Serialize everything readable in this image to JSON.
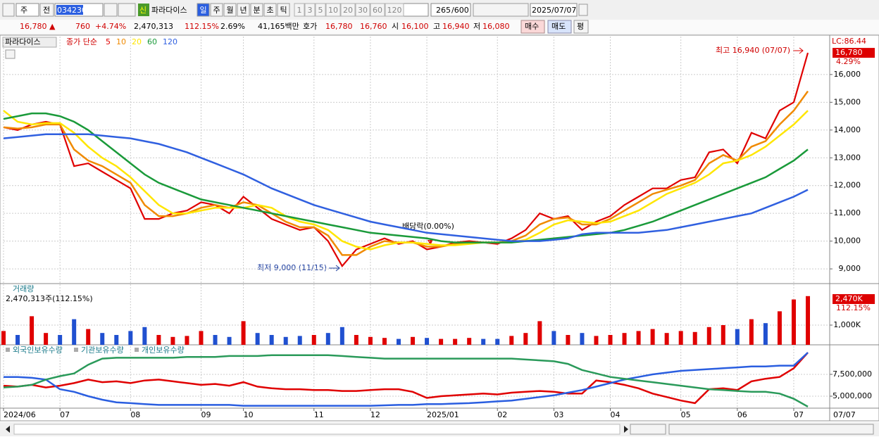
{
  "toolbar": {
    "period_mode": "주",
    "compare": "전",
    "code": "034230",
    "name_badge": "신",
    "name": "파라다이스",
    "periods": [
      "일",
      "주",
      "월",
      "년",
      "분",
      "초",
      "틱"
    ],
    "intervals": [
      "1",
      "3",
      "5",
      "10",
      "20",
      "30",
      "60",
      "120"
    ],
    "count": "265",
    "count_max": "/600",
    "date": "2025/07/07"
  },
  "quote": {
    "price": "16,780 ▲",
    "change": "760",
    "change_pct": "+4.74%",
    "volume": "2,470,313",
    "volume_ratio": "112.15%",
    "turnover": "2.69%",
    "amount": "41,165백만",
    "ask_label": "호가",
    "ask": "16,780",
    "bid": "16,760",
    "open_label": "시",
    "open": "16,100",
    "high_label": "고",
    "high": "16,940",
    "low_label": "저",
    "low": "16,080",
    "buy": "매수",
    "sell": "매도",
    "eval": "평"
  },
  "chart_data": [
    {
      "type": "line",
      "name": "파라다이스",
      "legend_title": "종가 단순",
      "categories": [
        "2024/06",
        null,
        null,
        null,
        "07",
        null,
        null,
        null,
        null,
        "08",
        null,
        null,
        null,
        null,
        "09",
        null,
        null,
        "10",
        null,
        null,
        null,
        null,
        "11",
        null,
        null,
        null,
        "12",
        null,
        null,
        null,
        "2025/01",
        null,
        null,
        null,
        null,
        "02",
        null,
        null,
        null,
        "03",
        null,
        null,
        null,
        "04",
        null,
        null,
        null,
        null,
        "05",
        null,
        null,
        null,
        "06",
        null,
        null,
        null,
        "07",
        null
      ],
      "x_last_label": "07/07",
      "series": [
        {
          "name": "5",
          "color": "#e00000",
          "values": [
            14100,
            14000,
            14200,
            14300,
            14200,
            12700,
            12800,
            12500,
            12200,
            11900,
            10800,
            10800,
            11000,
            11100,
            11400,
            11300,
            11000,
            11600,
            11200,
            10800,
            10600,
            10400,
            10500,
            10000,
            9100,
            9700,
            9900,
            10100,
            9900,
            10000,
            9700,
            9800,
            9950,
            10000,
            9950,
            9900,
            10100,
            10400,
            11000,
            10800,
            10900,
            10400,
            10700,
            10900,
            11300,
            11600,
            11900,
            11900,
            12200,
            12300,
            13200,
            13300,
            12800,
            13900,
            13700,
            14700,
            15000,
            16780
          ]
        },
        {
          "name": "10",
          "color": "#f08a00",
          "values": [
            14100,
            14050,
            14100,
            14200,
            14200,
            13300,
            12900,
            12700,
            12400,
            12100,
            11300,
            10900,
            10900,
            11000,
            11200,
            11300,
            11200,
            11400,
            11300,
            11000,
            10700,
            10500,
            10500,
            10200,
            9500,
            9500,
            9800,
            10000,
            9950,
            9950,
            9800,
            9800,
            9900,
            9950,
            9950,
            9950,
            10000,
            10200,
            10600,
            10800,
            10850,
            10600,
            10600,
            10800,
            11100,
            11400,
            11700,
            11850,
            12000,
            12200,
            12800,
            13100,
            12900,
            13400,
            13600,
            14200,
            14700,
            15400
          ]
        },
        {
          "name": "20",
          "color": "#ffe600",
          "values": [
            14700,
            14300,
            14200,
            14250,
            14250,
            13900,
            13400,
            13000,
            12700,
            12300,
            11800,
            11300,
            11000,
            11000,
            11100,
            11200,
            11200,
            11200,
            11300,
            11200,
            10900,
            10700,
            10600,
            10400,
            10000,
            9800,
            9700,
            9850,
            9950,
            9950,
            9900,
            9850,
            9850,
            9900,
            9950,
            9950,
            9950,
            10050,
            10300,
            10600,
            10750,
            10700,
            10650,
            10700,
            10900,
            11100,
            11400,
            11700,
            11900,
            12100,
            12400,
            12800,
            12900,
            13100,
            13400,
            13800,
            14200,
            14700
          ]
        },
        {
          "name": "60",
          "color": "#1a9a3a",
          "values": [
            14400,
            14500,
            14600,
            14600,
            14500,
            14300,
            14000,
            13600,
            13200,
            12800,
            12400,
            12100,
            11900,
            11700,
            11500,
            11400,
            11300,
            11200,
            11100,
            11000,
            10900,
            10800,
            10700,
            10600,
            10500,
            10400,
            10300,
            10250,
            10200,
            10150,
            10100,
            10000,
            9950,
            9950,
            9950,
            9950,
            9950,
            10000,
            10050,
            10100,
            10150,
            10200,
            10250,
            10300,
            10400,
            10550,
            10700,
            10900,
            11100,
            11300,
            11500,
            11700,
            11900,
            12100,
            12300,
            12600,
            12900,
            13300
          ]
        },
        {
          "name": "120",
          "color": "#3060e0",
          "values": [
            13700,
            13750,
            13800,
            13850,
            13850,
            13850,
            13850,
            13800,
            13750,
            13700,
            13600,
            13500,
            13350,
            13200,
            13000,
            12800,
            12600,
            12400,
            12150,
            11900,
            11700,
            11500,
            11300,
            11150,
            11000,
            10850,
            10700,
            10600,
            10500,
            10400,
            10300,
            10250,
            10200,
            10150,
            10100,
            10050,
            10000,
            10000,
            10000,
            10050,
            10100,
            10250,
            10300,
            10300,
            10300,
            10300,
            10350,
            10400,
            10500,
            10600,
            10700,
            10800,
            10900,
            11000,
            11200,
            11400,
            11600,
            11850
          ]
        }
      ],
      "ylim": [
        8470,
        16960
      ],
      "yticks": [
        {
          "value": 9000,
          "label": "9,000"
        },
        {
          "value": 10000,
          "label": "10,000"
        },
        {
          "value": 11000,
          "label": "11,000"
        },
        {
          "value": 12000,
          "label": "12,000"
        },
        {
          "value": 13000,
          "label": "13,000"
        },
        {
          "value": 14000,
          "label": "14,000"
        },
        {
          "value": 15000,
          "label": "15,000"
        },
        {
          "value": 16000,
          "label": "16,000"
        }
      ],
      "grid": true,
      "annotations": {
        "high": "최고 16,940 (07/07)",
        "low": "최저 9,000 (11/15)",
        "dividend": "배당락(0.00%)",
        "lc": "LC:86.44",
        "last_price": "16,780",
        "last_pct": "4.29%"
      }
    },
    {
      "type": "bar",
      "title": "거래량",
      "subtitle": "2,470,313주(112.15%)",
      "up_color": "#e00000",
      "down_color": "#2050d0",
      "values": [
        700000,
        500000,
        1450000,
        600000,
        500000,
        1300000,
        800000,
        600000,
        500000,
        700000,
        900000,
        500000,
        400000,
        450000,
        700000,
        500000,
        400000,
        1200000,
        600000,
        500000,
        400000,
        450000,
        500000,
        600000,
        900000,
        500000,
        400000,
        350000,
        300000,
        400000,
        350000,
        300000,
        300000,
        350000,
        300000,
        300000,
        450000,
        600000,
        1200000,
        700000,
        500000,
        600000,
        450000,
        500000,
        600000,
        700000,
        800000,
        600000,
        700000,
        650000,
        900000,
        1000000,
        800000,
        1300000,
        1100000,
        1700000,
        2300000,
        2470313
      ],
      "ylim": [
        0,
        2570000
      ],
      "yticks": [
        {
          "value": 1000000,
          "label": "1,000K"
        }
      ],
      "grid": true,
      "last_label": "2,470K",
      "last_pct": "112.15%"
    },
    {
      "type": "line",
      "series": [
        {
          "name": "외국인보유수량",
          "color": "#e00000",
          "values": [
            6200000,
            6100000,
            6300000,
            6000000,
            6200000,
            6500000,
            6900000,
            6600000,
            6700000,
            6500000,
            6800000,
            6900000,
            6700000,
            6500000,
            6300000,
            6400000,
            6200000,
            6600000,
            6100000,
            5900000,
            5800000,
            5800000,
            5700000,
            5700000,
            5600000,
            5600000,
            5700000,
            5800000,
            5800000,
            5500000,
            4800000,
            5000000,
            5100000,
            5200000,
            5300000,
            5200000,
            5400000,
            5500000,
            5600000,
            5500000,
            5300000,
            5300000,
            6800000,
            6600000,
            6300000,
            5900000,
            5300000,
            4900000,
            4500000,
            4200000,
            5800000,
            5900000,
            5700000,
            6700000,
            7000000,
            7200000,
            8200000,
            10000000
          ]
        },
        {
          "name": "기관보유수량",
          "color": "#2a5ee0",
          "values": [
            7200000,
            7200000,
            7100000,
            6900000,
            5800000,
            5500000,
            5000000,
            4600000,
            4300000,
            4200000,
            4100000,
            4000000,
            4000000,
            4000000,
            4000000,
            4000000,
            4000000,
            3900000,
            3900000,
            3900000,
            3900000,
            3900000,
            3900000,
            3900000,
            3900000,
            3900000,
            3900000,
            3950000,
            4000000,
            4000000,
            4100000,
            4100000,
            4150000,
            4200000,
            4300000,
            4400000,
            4500000,
            4700000,
            4900000,
            5100000,
            5400000,
            5700000,
            6100000,
            6500000,
            6900000,
            7200000,
            7500000,
            7700000,
            7900000,
            8000000,
            8100000,
            8200000,
            8300000,
            8400000,
            8400000,
            8500000,
            8500000,
            10000000
          ]
        },
        {
          "name": "개인보유수량",
          "color": "#2a9a5a",
          "values": [
            6000000,
            6100000,
            6300000,
            6900000,
            7300000,
            7600000,
            8600000,
            9300000,
            9400000,
            9400000,
            9400000,
            9400000,
            9400000,
            9500000,
            9500000,
            9500000,
            9600000,
            9600000,
            9600000,
            9700000,
            9700000,
            9700000,
            9700000,
            9700000,
            9600000,
            9500000,
            9400000,
            9300000,
            9300000,
            9300000,
            9300000,
            9300000,
            9300000,
            9300000,
            9300000,
            9300000,
            9300000,
            9200000,
            9100000,
            9000000,
            8700000,
            8000000,
            7600000,
            7200000,
            7000000,
            6800000,
            6600000,
            6400000,
            6200000,
            6000000,
            5800000,
            5700000,
            5600000,
            5500000,
            5500000,
            5300000,
            4700000,
            3800000
          ]
        }
      ],
      "ylim": [
        3630000,
        10480000
      ],
      "yticks": [
        {
          "value": 5000000,
          "label": "5,000,000"
        },
        {
          "value": 7500000,
          "label": "7,500,000"
        }
      ],
      "grid": true
    }
  ]
}
